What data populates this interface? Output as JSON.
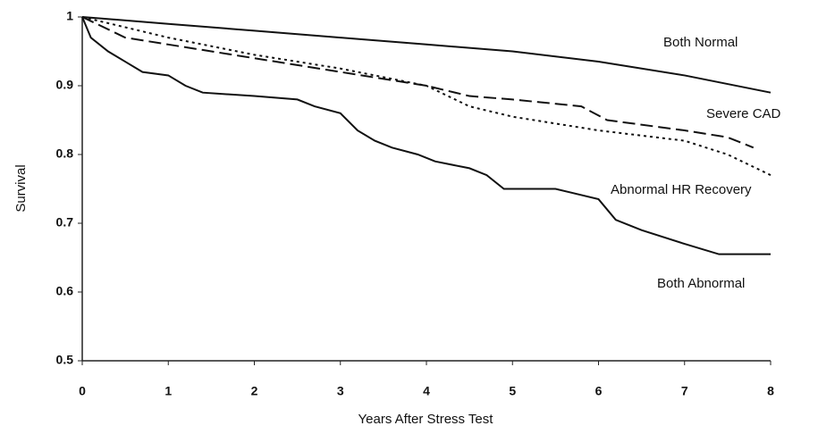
{
  "chart_data": {
    "type": "line",
    "xlabel": "Years After Stress Test",
    "ylabel": "Survival",
    "xlim": [
      0,
      8
    ],
    "ylim": [
      0.5,
      1
    ],
    "xticks": [
      0,
      1,
      2,
      3,
      4,
      5,
      6,
      7,
      8
    ],
    "yticks": [
      0.5,
      0.6,
      0.7,
      0.8,
      0.9,
      1
    ],
    "series": [
      {
        "name": "Both Normal",
        "color": "#111111",
        "dash": "none",
        "x": [
          0,
          1,
          2,
          3,
          4,
          5,
          6,
          7,
          8
        ],
        "values": [
          1,
          0.99,
          0.98,
          0.97,
          0.96,
          0.95,
          0.935,
          0.915,
          0.89
        ]
      },
      {
        "name": "Severe CAD",
        "color": "#111111",
        "dash": "14 6",
        "x": [
          0,
          0.5,
          1,
          1.5,
          2,
          3,
          4,
          4.5,
          5,
          5.8,
          6.1,
          7,
          7.5,
          7.8
        ],
        "values": [
          1,
          0.97,
          0.96,
          0.95,
          0.94,
          0.92,
          0.9,
          0.885,
          0.88,
          0.87,
          0.85,
          0.835,
          0.825,
          0.81
        ]
      },
      {
        "name": "Abnormal HR Recovery",
        "color": "#111111",
        "dash": "3 4",
        "x": [
          0,
          1,
          2,
          3,
          4,
          4.5,
          5,
          6,
          7,
          7.5,
          8
        ],
        "values": [
          1,
          0.97,
          0.945,
          0.925,
          0.9,
          0.87,
          0.855,
          0.835,
          0.82,
          0.8,
          0.77
        ]
      },
      {
        "name": "Both Abnormal",
        "color": "#111111",
        "dash": "none",
        "x": [
          0,
          0.1,
          0.3,
          0.5,
          0.7,
          1,
          1.2,
          1.4,
          2,
          2.5,
          2.7,
          3,
          3.2,
          3.4,
          3.6,
          3.9,
          4.1,
          4.5,
          4.7,
          4.9,
          5.5,
          6,
          6.2,
          6.5,
          7,
          7.4,
          8
        ],
        "values": [
          1,
          0.97,
          0.95,
          0.935,
          0.92,
          0.915,
          0.9,
          0.89,
          0.885,
          0.88,
          0.87,
          0.86,
          0.835,
          0.82,
          0.81,
          0.8,
          0.79,
          0.78,
          0.77,
          0.75,
          0.75,
          0.735,
          0.705,
          0.69,
          0.67,
          0.655,
          0.655
        ]
      }
    ]
  }
}
